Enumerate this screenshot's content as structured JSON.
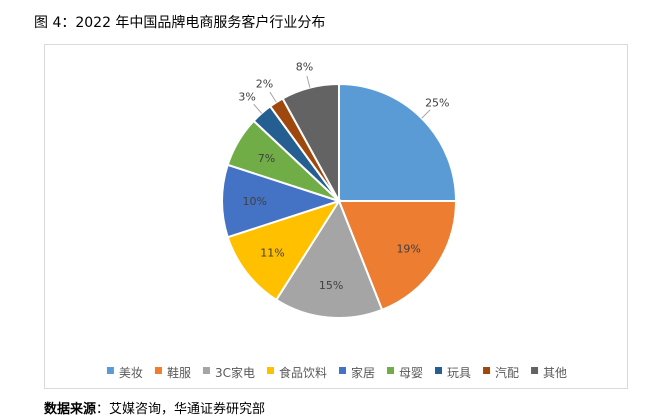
{
  "figure": {
    "title": "图 4：2022 年中国品牌电商服务客户行业分布",
    "source_label": "数据来源",
    "source_text": "：艾媒咨询，华通证券研究部"
  },
  "chart_data": {
    "type": "pie",
    "title": "",
    "legend_position": "bottom",
    "start_angle_deg": 0,
    "direction": "clockwise",
    "categories": [
      "美妆",
      "鞋服",
      "3C家电",
      "食品饮料",
      "家居",
      "母婴",
      "玩具",
      "汽配",
      "其他"
    ],
    "values": [
      25,
      19,
      15,
      11,
      10,
      7,
      3,
      2,
      8
    ],
    "value_labels": [
      "25%",
      "19%",
      "15%",
      "11%",
      "10%",
      "7%",
      "3%",
      "2%",
      "8%"
    ],
    "colors": [
      "#5B9BD5",
      "#ED7D31",
      "#A5A5A5",
      "#FFC000",
      "#4472C4",
      "#70AD47",
      "#255E91",
      "#9E480E",
      "#636363"
    ],
    "label_placement": [
      "outside",
      "inside",
      "inside",
      "inside",
      "inside",
      "inside",
      "outside",
      "outside",
      "outside"
    ]
  }
}
